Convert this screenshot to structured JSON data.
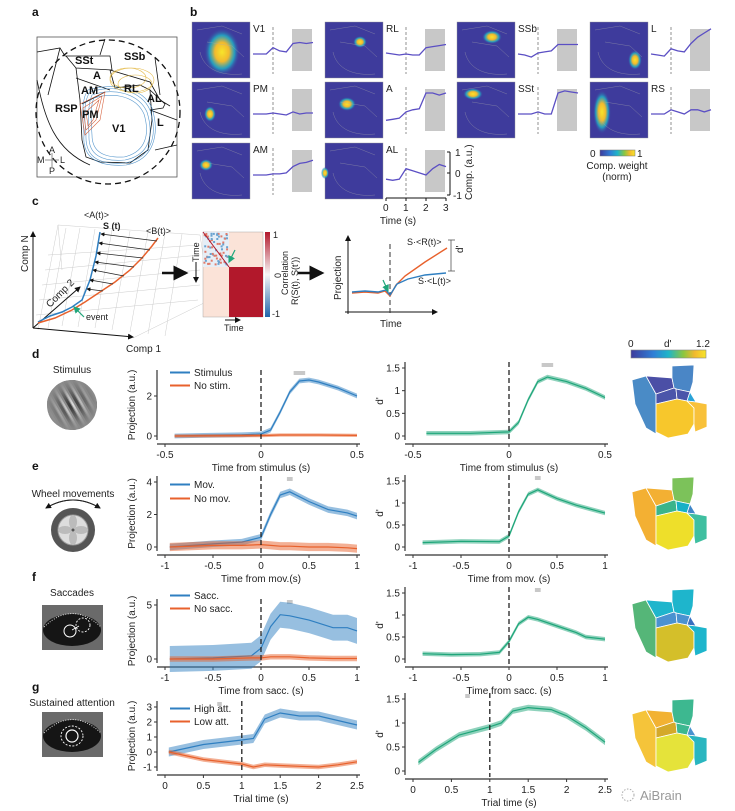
{
  "panel_labels": {
    "a": "a",
    "b": "b",
    "c": "c",
    "d": "d",
    "e": "e",
    "f": "f",
    "g": "g"
  },
  "panel_a": {
    "areas": {
      "SSt": "SSt",
      "SSb": "SSb",
      "A": "A",
      "RL": "RL",
      "AM": "AM",
      "AL": "AL",
      "RSP": "RSP",
      "PM": "PM",
      "V1": "V1",
      "L": "L"
    },
    "compass": {
      "anterior": "A",
      "medial": "M",
      "lateral": "L",
      "posterior": "P"
    },
    "contour_colors": {
      "V1": "#2f7fc1",
      "RL": "#e2b43a",
      "PM": "#d3532b"
    }
  },
  "panel_b": {
    "cells": [
      {
        "label": "V1",
        "trace": [
          0,
          0,
          0,
          0.3,
          0.15,
          0.1,
          0.5,
          0.55,
          0.5,
          0.55
        ]
      },
      {
        "label": "RL",
        "trace": [
          0.05,
          0,
          -0.05,
          0,
          -0.05,
          -0.05,
          0.3,
          0.35,
          0.4,
          0.45
        ]
      },
      {
        "label": "SSb",
        "trace": [
          0,
          -0.05,
          -0.15,
          0.05,
          0.1,
          0.15,
          0.45,
          0.45,
          0.45,
          0.45
        ]
      },
      {
        "label": "L",
        "trace": [
          0,
          -0.05,
          -0.1,
          0.25,
          0.15,
          0.1,
          0.5,
          0.8,
          1.0,
          1.2
        ]
      },
      {
        "label": "PM",
        "trace": [
          0,
          0,
          0,
          0.05,
          0,
          -0.05,
          0.1,
          0.0,
          0.05,
          0.05
        ]
      },
      {
        "label": "A",
        "trace": [
          -0.3,
          -0.25,
          -0.2,
          0.1,
          0.2,
          0.25,
          1.0,
          1.0,
          0.9,
          1.0
        ]
      },
      {
        "label": "SSt",
        "trace": [
          0,
          0,
          0,
          0.1,
          0,
          0,
          1.0,
          1.1,
          1.05,
          1.0
        ]
      },
      {
        "label": "RS",
        "trace": [
          0,
          0,
          0,
          0.2,
          0.1,
          0,
          0.2,
          0.2,
          0.1,
          0.2
        ]
      },
      {
        "label": "AM",
        "trace": [
          0,
          0,
          0,
          0.05,
          0.05,
          0.1,
          0.4,
          0.55,
          0.6,
          0.7
        ]
      },
      {
        "label": "AL",
        "trace": [
          -0.2,
          -0.25,
          -0.2,
          0.3,
          0.2,
          0.1,
          0.0,
          0.3,
          0.5,
          0.4
        ]
      }
    ],
    "map_background": "#3e3b9c",
    "trace_color": "#5b4fc4",
    "comp_axis": {
      "label": "Comp. (a.u.)",
      "ticks": [
        "1",
        "0",
        "-1"
      ]
    },
    "time_axis": {
      "label": "Time (s)",
      "ticks": [
        "0",
        "1",
        "2",
        "3"
      ]
    },
    "colorbar": {
      "min": "0",
      "max": "1",
      "label_line1": "Comp. weight",
      "label_line2": "(norm)"
    }
  },
  "panel_c": {
    "axes": {
      "comp_n": "Comp N",
      "comp_2": "Comp 2",
      "comp_1": "Comp 1"
    },
    "labels": {
      "mean_a": "<A(t)>",
      "single": "S (t)",
      "mean_b": "<B(t)>",
      "event": "event"
    },
    "matrix": {
      "y_label": "Time",
      "x_label": "Time",
      "cbar_label": "Correlation",
      "cbar_formula": "R(S(t), S(t'))",
      "cbar_max": "1",
      "cbar_mid": "0",
      "cbar_min": "-1"
    },
    "schematic": {
      "y_label": "Projection",
      "x_label": "Time",
      "right": "S·<R(t)>",
      "left": "S·<L(t)>",
      "dprime": "d'"
    },
    "colors": {
      "blue": "#2f7fc1",
      "orange": "#e8612c",
      "green": "#1fa67a"
    }
  },
  "rows": [
    {
      "id": "d",
      "title": "Stimulus",
      "legend": [
        "Stimulus",
        "No stim."
      ],
      "xlabel": "Time from stimulus (s)",
      "region_colors": {
        "RSP": "#4a8bc6",
        "SSt": "#4b4fa6",
        "SSb": "#4a86c6",
        "A": "#4b55aa",
        "RL": "#4b55aa",
        "AL": "#2aa3d8",
        "V1": "#f7c72c",
        "L": "#f8c13a"
      }
    },
    {
      "id": "e",
      "title": "Wheel movements",
      "legend": [
        "Mov.",
        "No mov."
      ],
      "xlabel": "Time from mov.(s)",
      "xlabel_right": "Time from mov. (s)",
      "region_colors": {
        "RSP": "#f3b033",
        "SSt": "#f3b033",
        "SSb": "#7cc25a",
        "A": "#3bb48a",
        "RL": "#17b0c5",
        "AL": "#3f86c9",
        "V1": "#eedf2a",
        "L": "#3fbfa0"
      }
    },
    {
      "id": "f",
      "title": "Saccades",
      "legend": [
        "Sacc.",
        "No sacc."
      ],
      "xlabel": "Time from sacc. (s)",
      "region_colors": {
        "RSP": "#55b678",
        "SSt": "#1eb5cc",
        "SSb": "#1eb5cc",
        "A": "#4a92d0",
        "RL": "#4a92d0",
        "AL": "#3a6fc0",
        "V1": "#d4bf2a",
        "L": "#1eb5cc"
      }
    },
    {
      "id": "g",
      "title": "Sustained attention",
      "legend": [
        "High att.",
        "Low att."
      ],
      "xlabel": "Trial time (s)",
      "region_colors": {
        "RSP": "#f5c43a",
        "SSt": "#f2b233",
        "SSb": "#3db890",
        "A": "#d4a92a",
        "RL": "#3db890",
        "AL": "#4a92d0",
        "V1": "#e5e33a",
        "L": "#2ab6c0"
      }
    }
  ],
  "dprime_colorbar": {
    "min": "0",
    "label": "d'",
    "max": "1.2"
  },
  "watermark": "AiBrain",
  "chart_data": [
    {
      "type": "line",
      "panel": "d-projection",
      "ylabel": "Projection (a.u.)",
      "xlabel": "Time from stimulus (s)",
      "xlim": [
        -0.5,
        0.5
      ],
      "ylim": [
        0,
        3
      ],
      "xticks": [
        "-0.5",
        "0",
        "0.5"
      ],
      "xtick_values": [
        -0.5,
        0,
        0.5
      ],
      "yticks": [
        "0",
        "2"
      ],
      "ytick_values": [
        0,
        2
      ],
      "event_line": 0,
      "significance_bar": [
        0.17,
        0.23
      ],
      "series": [
        {
          "name": "Stimulus",
          "color": "#2f7fc1",
          "band": 0.12,
          "x": [
            -0.45,
            -0.3,
            -0.1,
            0,
            0.05,
            0.1,
            0.15,
            0.2,
            0.25,
            0.3,
            0.4,
            0.5
          ],
          "y": [
            0,
            0.03,
            0.06,
            0.1,
            0.3,
            1.2,
            2.2,
            2.75,
            2.8,
            2.7,
            2.4,
            2.0
          ]
        },
        {
          "name": "No stim.",
          "color": "#e8612c",
          "band": 0.08,
          "x": [
            -0.45,
            0,
            0.1,
            0.3,
            0.5
          ],
          "y": [
            0,
            0.02,
            0.05,
            0.05,
            0.03
          ]
        }
      ]
    },
    {
      "type": "line",
      "panel": "d-dprime",
      "ylabel": "d'",
      "xlabel": "Time from stimulus (s)",
      "xlim": [
        -0.5,
        0.5
      ],
      "ylim": [
        0,
        1.5
      ],
      "xticks": [
        "-0.5",
        "0",
        "0.5"
      ],
      "xtick_values": [
        -0.5,
        0,
        0.5
      ],
      "yticks": [
        "0",
        "0.5",
        "1",
        "1.5"
      ],
      "ytick_values": [
        0,
        0.5,
        1,
        1.5
      ],
      "event_line": 0,
      "significance_bar": [
        0.17,
        0.23
      ],
      "series": [
        {
          "color": "#1fa67a",
          "band": 0.05,
          "x": [
            -0.43,
            -0.2,
            0,
            0.05,
            0.1,
            0.15,
            0.2,
            0.3,
            0.4,
            0.5
          ],
          "y": [
            0.06,
            0.06,
            0.09,
            0.3,
            0.8,
            1.2,
            1.3,
            1.2,
            1.05,
            0.85
          ]
        }
      ]
    },
    {
      "type": "line",
      "panel": "e-projection",
      "ylabel": "Projection (a.u.)",
      "xlabel": "Time from mov.(s)",
      "xlim": [
        -1,
        1
      ],
      "ylim": [
        0,
        4
      ],
      "xticks": [
        "-1",
        "-0.5",
        "0",
        "0.5",
        "1"
      ],
      "xtick_values": [
        -1,
        -0.5,
        0,
        0.5,
        1
      ],
      "yticks": [
        "0",
        "2",
        "4"
      ],
      "ytick_values": [
        0,
        2,
        4
      ],
      "event_line": 0,
      "significance_bar": [
        0.27,
        0.33
      ],
      "series": [
        {
          "name": "Mov.",
          "color": "#2f7fc1",
          "band": 0.2,
          "x": [
            -0.95,
            -0.5,
            -0.2,
            0,
            0.1,
            0.2,
            0.3,
            0.5,
            0.7,
            0.9,
            1
          ],
          "y": [
            0,
            0.2,
            0.3,
            0.6,
            2,
            3.2,
            3.4,
            2.8,
            2.3,
            2.1,
            1.9
          ]
        },
        {
          "name": "No mov.",
          "color": "#e8612c",
          "band": 0.25,
          "x": [
            -0.95,
            -0.5,
            -0.2,
            0,
            0.1,
            0.2,
            0.3,
            0.5,
            0.7,
            0.9,
            1
          ],
          "y": [
            0,
            0.1,
            0.1,
            0.15,
            0.1,
            0.05,
            0.05,
            0,
            0,
            -0.05,
            -0.1
          ]
        }
      ]
    },
    {
      "type": "line",
      "panel": "e-dprime",
      "ylabel": "d'",
      "xlabel": "Time from mov. (s)",
      "xlim": [
        -1,
        1
      ],
      "ylim": [
        0,
        1.5
      ],
      "xticks": [
        "-1",
        "-0.5",
        "0",
        "0.5",
        "1"
      ],
      "xtick_values": [
        -1,
        -0.5,
        0,
        0.5,
        1
      ],
      "yticks": [
        "0",
        "0.5",
        "1",
        "1.5"
      ],
      "ytick_values": [
        0,
        0.5,
        1,
        1.5
      ],
      "event_line": 0,
      "significance_bar": [
        0.27,
        0.33
      ],
      "series": [
        {
          "color": "#1fa67a",
          "band": 0.05,
          "x": [
            -0.9,
            -0.5,
            -0.1,
            0,
            0.1,
            0.2,
            0.3,
            0.5,
            0.7,
            1
          ],
          "y": [
            0.1,
            0.13,
            0.12,
            0.25,
            0.8,
            1.2,
            1.3,
            1.1,
            0.95,
            0.77
          ]
        }
      ]
    },
    {
      "type": "line",
      "panel": "f-projection",
      "ylabel": "Projection (a.u.)",
      "xlabel": "Time from sacc. (s)",
      "xlim": [
        -1,
        1
      ],
      "ylim": [
        0,
        5
      ],
      "xticks": [
        "-1",
        "-0.5",
        "0",
        "0.5",
        "1"
      ],
      "xtick_values": [
        -1,
        -0.5,
        0,
        0.5,
        1
      ],
      "yticks": [
        "0",
        "5"
      ],
      "ytick_values": [
        0,
        5
      ],
      "event_line": 0,
      "significance_bar": [
        0.27,
        0.33
      ],
      "series": [
        {
          "name": "Sacc.",
          "color": "#2f7fc1",
          "band": 1.2,
          "x": [
            -0.95,
            -0.5,
            -0.1,
            0,
            0.1,
            0.2,
            0.3,
            0.5,
            0.75,
            0.9,
            1
          ],
          "y": [
            0,
            0.1,
            0.3,
            1,
            3,
            4.1,
            4,
            3.6,
            2.9,
            2.9,
            2.6
          ]
        },
        {
          "name": "No sacc.",
          "color": "#e8612c",
          "band": 0.25,
          "x": [
            -0.95,
            -0.5,
            -0.1,
            0,
            0.1,
            0.2,
            0.3,
            0.5,
            0.75,
            0.9,
            1
          ],
          "y": [
            0,
            0,
            0.1,
            0.1,
            0.2,
            0.2,
            0.2,
            0.1,
            0.05,
            0.05,
            0.05
          ]
        }
      ]
    },
    {
      "type": "line",
      "panel": "f-dprime",
      "ylabel": "d'",
      "xlabel": "Time from sacc. (s)",
      "xlim": [
        -1,
        1
      ],
      "ylim": [
        0,
        1.5
      ],
      "xticks": [
        "-1",
        "-0.5",
        "0",
        "0.5",
        "1"
      ],
      "xtick_values": [
        -1,
        -0.5,
        0,
        0.5,
        1
      ],
      "yticks": [
        "0",
        "0.5",
        "1",
        "1.5"
      ],
      "ytick_values": [
        0,
        0.5,
        1,
        1.5
      ],
      "event_line": 0,
      "significance_bar": [
        0.27,
        0.33
      ],
      "series": [
        {
          "color": "#1fa67a",
          "band": 0.05,
          "x": [
            -0.9,
            -0.6,
            -0.3,
            -0.1,
            0,
            0.1,
            0.2,
            0.3,
            0.5,
            0.7,
            0.8,
            1
          ],
          "y": [
            0.12,
            0.1,
            0.11,
            0.15,
            0.4,
            0.8,
            0.95,
            0.9,
            0.75,
            0.6,
            0.5,
            0.45
          ]
        }
      ]
    },
    {
      "type": "line",
      "panel": "g-projection",
      "ylabel": "Projection (a.u.)",
      "xlabel": "Trial time (s)",
      "xlim": [
        0,
        2.5
      ],
      "ylim": [
        -1,
        3
      ],
      "xticks": [
        "0",
        "0.5",
        "1",
        "1.5",
        "2",
        "2.5"
      ],
      "xtick_values": [
        0,
        0.5,
        1,
        1.5,
        2,
        2.5
      ],
      "yticks": [
        "-1",
        "0",
        "1",
        "2",
        "3"
      ],
      "ytick_values": [
        -1,
        0,
        1,
        2,
        3
      ],
      "event_line": 1,
      "significance_bar": [
        0.68,
        0.74
      ],
      "series": [
        {
          "name": "High att.",
          "color": "#2f7fc1",
          "band": 0.3,
          "x": [
            0.05,
            0.5,
            1,
            1.15,
            1.3,
            1.5,
            1.75,
            2,
            2.25,
            2.5
          ],
          "y": [
            0,
            0.5,
            0.8,
            0.9,
            2.2,
            2.6,
            2.4,
            2.4,
            2.1,
            1.8
          ]
        },
        {
          "name": "Low att.",
          "color": "#e8612c",
          "band": 0.15,
          "x": [
            0.05,
            0.5,
            1,
            1.15,
            1.3,
            1.5,
            1.75,
            2,
            2.25,
            2.5
          ],
          "y": [
            0,
            -0.5,
            -0.8,
            -1,
            -0.85,
            -0.9,
            -0.95,
            -1,
            -0.85,
            -0.65
          ]
        }
      ]
    },
    {
      "type": "line",
      "panel": "g-dprime",
      "ylabel": "d'",
      "xlabel": "Trial time (s)",
      "xlim": [
        0,
        2.5
      ],
      "ylim": [
        0,
        1.5
      ],
      "xticks": [
        "0",
        "0.5",
        "1",
        "1.5",
        "2",
        "2.5"
      ],
      "xtick_values": [
        0,
        0.5,
        1,
        1.5,
        2,
        2.5
      ],
      "yticks": [
        "0",
        "0.5",
        "1",
        "1.5"
      ],
      "ytick_values": [
        0,
        0.5,
        1,
        1.5
      ],
      "event_line": 1,
      "significance_bar": [
        0.68,
        0.74
      ],
      "series": [
        {
          "color": "#1fa67a",
          "band": 0.06,
          "x": [
            0.07,
            0.3,
            0.6,
            1,
            1.15,
            1.3,
            1.5,
            1.8,
            2,
            2.25,
            2.5
          ],
          "y": [
            0.18,
            0.45,
            0.75,
            0.92,
            1.0,
            1.25,
            1.32,
            1.28,
            1.15,
            0.9,
            0.6
          ]
        }
      ]
    }
  ]
}
